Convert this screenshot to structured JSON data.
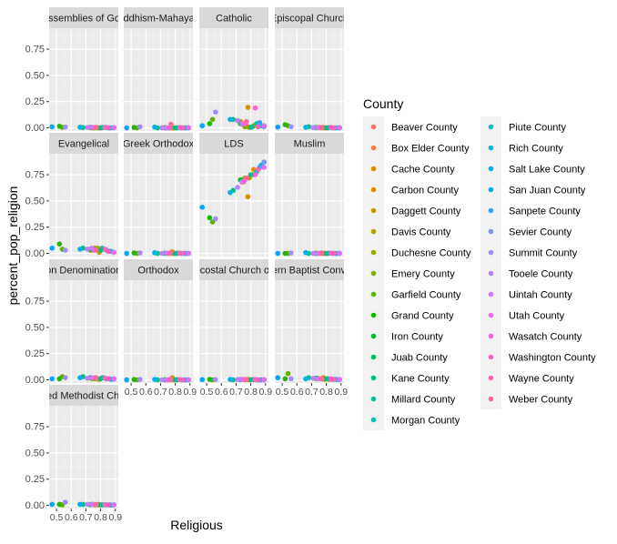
{
  "chart_data": {
    "type": "scatter",
    "facet": "religion",
    "xlabel": "Religious",
    "ylabel": "percent_pop_religion",
    "xlim": [
      0.45,
      0.92
    ],
    "ylim": [
      -0.03,
      0.95
    ],
    "x_ticks": [
      0.5,
      0.6,
      0.7,
      0.8,
      0.9
    ],
    "x_tick_labels": [
      "0.5",
      "0.6",
      "0.7",
      "0.8",
      "0.9"
    ],
    "y_ticks": [
      0,
      0.25,
      0.5,
      0.75
    ],
    "y_tick_labels": [
      "0.00",
      "0.25",
      "0.50",
      "0.75"
    ],
    "grid": true,
    "legend_title": "County",
    "legend_placement": "right",
    "facets": [
      "Assemblies of God",
      "Buddhism-Mahayana",
      "Catholic",
      "Episcopal Church",
      "Evangelical",
      "Greek Orthodox",
      "LDS",
      "Muslim",
      "Non Denominational",
      "Orthodox",
      "Pentecostal Church of God",
      "Southern Baptist Convention",
      "United Methodist Church"
    ],
    "counties": [
      {
        "name": "Beaver County",
        "color": "#F8766D",
        "religious": 0.78
      },
      {
        "name": "Box Elder County",
        "color": "#F07E4D",
        "religious": 0.75
      },
      {
        "name": "Cache County",
        "color": "#E58700",
        "religious": 0.82
      },
      {
        "name": "Carbon County",
        "color": "#D79000",
        "religious": 0.78
      },
      {
        "name": "Daggett County",
        "color": "#C49A00",
        "religious": 0.79
      },
      {
        "name": "Davis County",
        "color": "#AFA100",
        "religious": 0.73
      },
      {
        "name": "Duchesne County",
        "color": "#99A800",
        "religious": 0.74
      },
      {
        "name": "Emery County",
        "color": "#7FAE00",
        "religious": 0.76
      },
      {
        "name": "Garfield County",
        "color": "#5BB300",
        "religious": 0.54
      },
      {
        "name": "Grand County",
        "color": "#1FB700",
        "religious": 0.52
      },
      {
        "name": "Iron County",
        "color": "#00BA38",
        "religious": 0.73
      },
      {
        "name": "Juab County",
        "color": "#00BC61",
        "religious": 0.8
      },
      {
        "name": "Kane County",
        "color": "#00BF7D",
        "religious": 0.68
      },
      {
        "name": "Millard County",
        "color": "#00C097",
        "religious": 0.81
      },
      {
        "name": "Morgan County",
        "color": "#00C0AF",
        "religious": 0.84
      },
      {
        "name": "Piute County",
        "color": "#00BDC4",
        "religious": 0.87
      },
      {
        "name": "Rich County",
        "color": "#00B8D8",
        "religious": 0.89
      },
      {
        "name": "Salt Lake County",
        "color": "#00B1EA",
        "religious": 0.66
      },
      {
        "name": "San Juan County",
        "color": "#00A7F8",
        "religious": 0.47
      },
      {
        "name": "Sanpete County",
        "color": "#35A2FF",
        "religious": 0.86
      },
      {
        "name": "Sevier County",
        "color": "#7799FF",
        "religious": 0.89
      },
      {
        "name": "Summit County",
        "color": "#9F8CFF",
        "religious": 0.56
      },
      {
        "name": "Tooele County",
        "color": "#BB81FF",
        "religious": 0.71
      },
      {
        "name": "Uintah County",
        "color": "#D277FF",
        "religious": 0.74
      },
      {
        "name": "Utah County",
        "color": "#E76BF3",
        "religious": 0.89
      },
      {
        "name": "Wasatch County",
        "color": "#F564E3",
        "religious": 0.76
      },
      {
        "name": "Washington County",
        "color": "#FC61D0",
        "religious": 0.83
      },
      {
        "name": "Wayne County",
        "color": "#FF63B6",
        "religious": 0.85
      },
      {
        "name": "Weber County",
        "color": "#FF6A98",
        "religious": 0.77
      }
    ],
    "values": {
      "Assemblies of God": [
        0,
        0,
        0.003,
        0,
        0,
        0.004,
        0,
        0,
        0.005,
        0.015,
        0.004,
        0,
        0.003,
        0.004,
        0.003,
        0,
        0.002,
        0.006,
        0.01,
        0,
        0,
        0.008,
        0.004,
        0.006,
        0.002,
        0.003,
        0.005,
        0,
        0.004
      ],
      "Buddhism-Mahayana": [
        0,
        0,
        0.002,
        0,
        0,
        0.003,
        0,
        0,
        0,
        0.004,
        0,
        0,
        0,
        0,
        0,
        0,
        0,
        0.007,
        0,
        0,
        0,
        0.01,
        0,
        0,
        0.002,
        0,
        0.003,
        0,
        0.035
      ],
      "Catholic": [
        0.012,
        0.03,
        0.02,
        0.195,
        0.005,
        0.06,
        0.04,
        0.01,
        0.08,
        0.04,
        0.04,
        0.005,
        0.08,
        0.01,
        0.04,
        0.02,
        0.02,
        0.08,
        0.02,
        0.05,
        0.01,
        0.15,
        0.07,
        0.04,
        0.02,
        0.04,
        0.19,
        0.01,
        0.06
      ],
      "Episcopal Church": [
        0,
        0.005,
        0.003,
        0.004,
        0,
        0.004,
        0.003,
        0,
        0.02,
        0.03,
        0.002,
        0,
        0.01,
        0,
        0,
        0,
        0,
        0.005,
        0.007,
        0,
        0,
        0.01,
        0.003,
        0.002,
        0.002,
        0.003,
        0.004,
        0,
        0.003
      ],
      "Evangelical": [
        0.03,
        0.03,
        0.04,
        0.05,
        0.01,
        0.03,
        0.04,
        0.05,
        0.04,
        0.09,
        0.04,
        0.03,
        0.05,
        0.05,
        0.03,
        0.02,
        0.01,
        0.04,
        0.05,
        0.02,
        0.01,
        0.03,
        0.04,
        0.05,
        0.01,
        0.03,
        0.04,
        0.02,
        0.03
      ],
      "Greek Orthodox": [
        0,
        0,
        0.002,
        0.015,
        0,
        0.003,
        0,
        0,
        0,
        0.004,
        0.001,
        0,
        0,
        0,
        0,
        0,
        0,
        0.006,
        0,
        0,
        0,
        0.005,
        0,
        0.002,
        0.001,
        0.002,
        0.002,
        0,
        0.008
      ],
      "LDS": [
        0.72,
        0.68,
        0.8,
        0.54,
        0.72,
        0.7,
        0.7,
        0.72,
        0.3,
        0.34,
        0.7,
        0.75,
        0.6,
        0.75,
        0.78,
        0.84,
        0.87,
        0.58,
        0.44,
        0.82,
        0.87,
        0.33,
        0.63,
        0.68,
        0.82,
        0.7,
        0.75,
        0.8,
        0.72
      ],
      "Muslim": [
        0,
        0,
        0.002,
        0,
        0,
        0.003,
        0,
        0,
        0,
        0,
        0,
        0,
        0,
        0,
        0,
        0,
        0,
        0.008,
        0,
        0,
        0,
        0.004,
        0,
        0,
        0.002,
        0,
        0.002,
        0,
        0.005
      ],
      "Non Denominational": [
        0.01,
        0.015,
        0.02,
        0.01,
        0.005,
        0.02,
        0.01,
        0.01,
        0.03,
        0.01,
        0.02,
        0.01,
        0.03,
        0.02,
        0.01,
        0.005,
        0.01,
        0.02,
        0.01,
        0.01,
        0.005,
        0.02,
        0.015,
        0.02,
        0.01,
        0.02,
        0.015,
        0.01,
        0.02
      ],
      "Orthodox": [
        0,
        0,
        0.002,
        0.02,
        0,
        0.002,
        0,
        0,
        0,
        0.003,
        0,
        0,
        0,
        0,
        0,
        0,
        0,
        0.004,
        0,
        0,
        0,
        0.003,
        0,
        0,
        0.001,
        0,
        0.002,
        0,
        0.005
      ],
      "Pentecostal Church of God": [
        0,
        0.003,
        0.002,
        0.005,
        0,
        0.003,
        0.004,
        0,
        0,
        0.004,
        0.002,
        0,
        0,
        0.002,
        0,
        0,
        0,
        0.004,
        0.002,
        0,
        0,
        0.003,
        0.003,
        0.004,
        0.001,
        0.002,
        0.003,
        0,
        0.003
      ],
      "Southern Baptist Convention": [
        0.008,
        0.01,
        0.005,
        0.02,
        0.005,
        0.01,
        0.015,
        0.01,
        0.06,
        0.01,
        0.015,
        0.01,
        0.02,
        0.01,
        0.005,
        0.002,
        0.003,
        0.01,
        0.02,
        0.005,
        0.002,
        0.01,
        0.015,
        0.01,
        0.004,
        0.01,
        0.01,
        0.003,
        0.01
      ],
      "United Methodist Church": [
        0.008,
        0.01,
        0.005,
        0.01,
        0.005,
        0.008,
        0.01,
        0.005,
        0.005,
        0.01,
        0.008,
        0.005,
        0.01,
        0.005,
        0.005,
        0.003,
        0.005,
        0.01,
        0.01,
        0.005,
        0.005,
        0.03,
        0.01,
        0.01,
        0.004,
        0.008,
        0.008,
        0.004,
        0.008
      ]
    }
  }
}
